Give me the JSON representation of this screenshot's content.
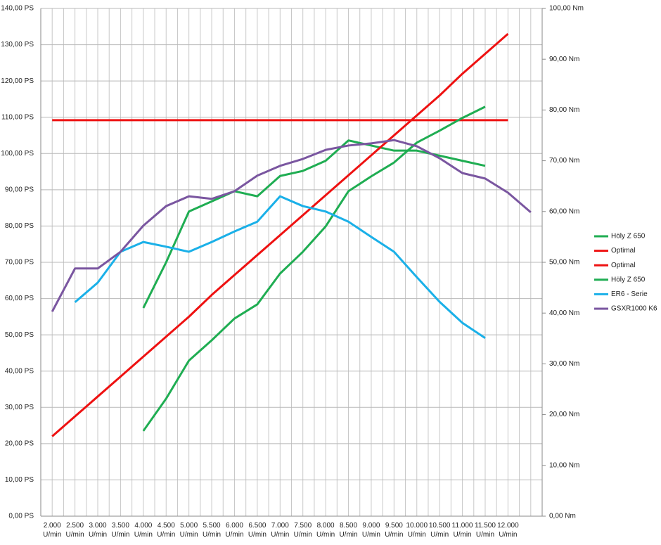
{
  "chart_data": {
    "type": "line",
    "categories": [
      "2.000 U/min",
      "2.500 U/min",
      "3.000 U/min",
      "3.500 U/min",
      "4.000 U/min",
      "4.500 U/min",
      "5.000 U/min",
      "5.500 U/min",
      "6.000 U/min",
      "6.500 U/min",
      "7.000 U/min",
      "7.500 U/min",
      "8.000 U/min",
      "8.500 U/min",
      "9.000 U/min",
      "9.500 U/min",
      "10.000 U/min",
      "10.500 U/min",
      "11.000 U/min",
      "11.500 U/min",
      "12.000 U/min",
      null
    ],
    "ylim": [
      0,
      140
    ],
    "yticks": [
      {
        "value": 0,
        "label": "0,00 PS"
      },
      {
        "value": 10,
        "label": "10,00 PS"
      },
      {
        "value": 20,
        "label": "20,00 PS"
      },
      {
        "value": 30,
        "label": "30,00 PS"
      },
      {
        "value": 40,
        "label": "40,00 PS"
      },
      {
        "value": 50,
        "label": "50,00 PS"
      },
      {
        "value": 60,
        "label": "60,00 PS"
      },
      {
        "value": 70,
        "label": "70,00 PS"
      },
      {
        "value": 80,
        "label": "80,00 PS"
      },
      {
        "value": 90,
        "label": "90,00 PS"
      },
      {
        "value": 100,
        "label": "100,00 PS"
      },
      {
        "value": 110,
        "label": "110,00 PS"
      },
      {
        "value": 120,
        "label": "120,00 PS"
      },
      {
        "value": 130,
        "label": "130,00 PS"
      },
      {
        "value": 140,
        "label": "140,00 PS"
      }
    ],
    "y2lim": [
      0,
      100
    ],
    "y2ticks": [
      {
        "value": 0,
        "label": "0,00 Nm"
      },
      {
        "value": 10,
        "label": "10,00 Nm"
      },
      {
        "value": 20,
        "label": "20,00 Nm"
      },
      {
        "value": 30,
        "label": "30,00 Nm"
      },
      {
        "value": 40,
        "label": "40,00 Nm"
      },
      {
        "value": 50,
        "label": "50,00 Nm"
      },
      {
        "value": 60,
        "label": "60,00 Nm"
      },
      {
        "value": 70,
        "label": "70,00 Nm"
      },
      {
        "value": 80,
        "label": "80,00 Nm"
      },
      {
        "value": 90,
        "label": "90,00 Nm"
      },
      {
        "value": 100,
        "label": "100,00 Nm"
      }
    ],
    "grid": true,
    "legend": "right",
    "series": [
      {
        "name": "Höly Z 650",
        "color": "#1fad52",
        "axis": "y2",
        "values": [
          null,
          null,
          null,
          null,
          41,
          50,
          60,
          62,
          64,
          63,
          67,
          68,
          70,
          74,
          73,
          72,
          72,
          71,
          70,
          69,
          null,
          null
        ]
      },
      {
        "name": "Optimal",
        "color": "#ee1111",
        "values": [
          22,
          27.5,
          33,
          38.5,
          44,
          49.5,
          55,
          61,
          66.5,
          72,
          77.5,
          83,
          88.5,
          94,
          99.5,
          105,
          110.5,
          116,
          122,
          127.5,
          133,
          null
        ]
      },
      {
        "name": "Optimal",
        "color": "#ee1111",
        "axis": "y2",
        "values": [
          78,
          78,
          78,
          78,
          78,
          78,
          78,
          78,
          78,
          78,
          78,
          78,
          78,
          78,
          78,
          78,
          78,
          78,
          78,
          78,
          78,
          null
        ]
      },
      {
        "name": "Höly Z 650",
        "color": "#1fad52",
        "values": [
          null,
          null,
          null,
          null,
          23.5,
          32.4,
          42.9,
          48.5,
          54.5,
          58.4,
          66.9,
          72.9,
          79.9,
          89.6,
          93.7,
          97.5,
          103,
          106.3,
          109.8,
          112.9,
          null,
          null
        ]
      },
      {
        "name": "ER6 - Serie",
        "color": "#1ab0e8",
        "values": [
          null,
          59,
          64.4,
          72.9,
          75.6,
          74.3,
          72.9,
          75.6,
          78.5,
          81.2,
          88.2,
          85.5,
          84,
          81.2,
          77,
          72.9,
          65.9,
          59.1,
          53.3,
          49.1,
          null,
          null
        ]
      },
      {
        "name": "GSXR1000 K6",
        "color": "#7a56a0",
        "values": [
          56.4,
          68.3,
          68.3,
          72.9,
          80.1,
          85.5,
          88.2,
          87.5,
          89.6,
          93.9,
          96.6,
          98.5,
          101,
          102.2,
          102.8,
          103.7,
          102,
          98.7,
          94.6,
          93.1,
          89.2,
          83.8
        ]
      }
    ]
  }
}
